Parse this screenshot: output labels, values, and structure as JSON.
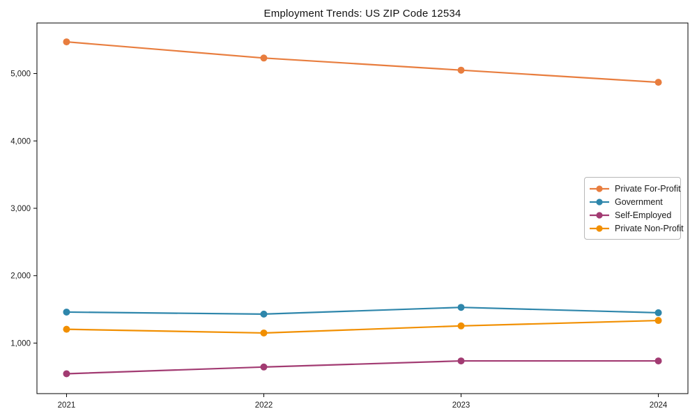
{
  "chart_data": {
    "type": "line",
    "title": "Employment Trends: US ZIP Code 12534",
    "xlabel": "",
    "ylabel": "",
    "categories": [
      "2021",
      "2022",
      "2023",
      "2024"
    ],
    "x": [
      2021,
      2022,
      2023,
      2024
    ],
    "xlim": [
      2020.85,
      2024.15
    ],
    "ylim": [
      250,
      5750
    ],
    "yticks": [
      1000,
      2000,
      3000,
      4000,
      5000
    ],
    "ytick_labels": [
      "1,000",
      "2,000",
      "3,000",
      "4,000",
      "5,000"
    ],
    "grid": false,
    "legend_position": "center-right",
    "marker": "circle",
    "series": [
      {
        "name": "Private For-Profit",
        "color": "#E87D3E",
        "values": [
          5470,
          5230,
          5050,
          4870
        ]
      },
      {
        "name": "Government",
        "color": "#2E86AB",
        "values": [
          1460,
          1430,
          1530,
          1450
        ]
      },
      {
        "name": "Self-Employed",
        "color": "#A23B72",
        "values": [
          545,
          645,
          735,
          735
        ]
      },
      {
        "name": "Private Non-Profit",
        "color": "#F18F01",
        "values": [
          1205,
          1150,
          1255,
          1335
        ]
      }
    ]
  }
}
